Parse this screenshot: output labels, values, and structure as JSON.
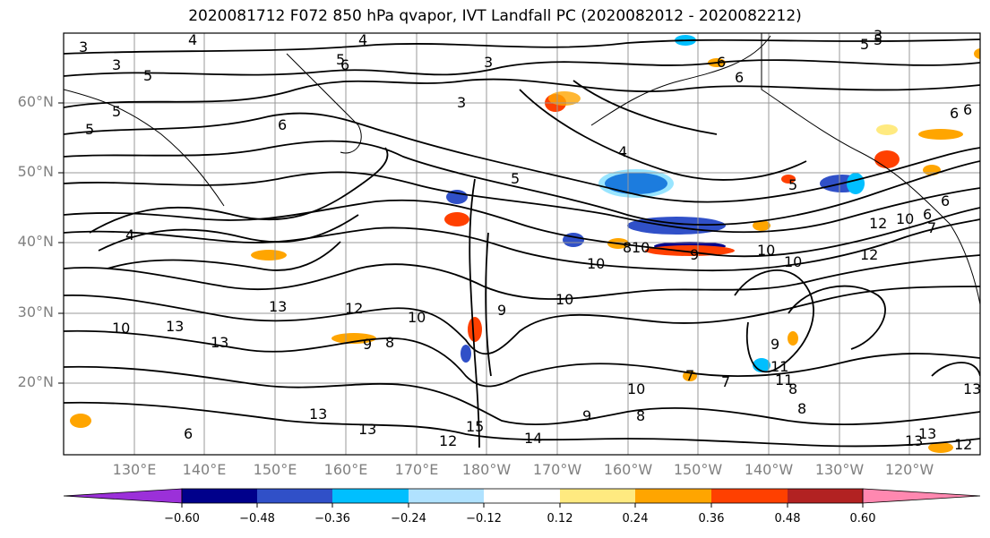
{
  "title": "2020081712 F072 850 hPa qvapor, IVT Landfall PC (2020082012 - 2020082212)",
  "lat_labels": [
    "60°N",
    "50°N",
    "40°N",
    "30°N",
    "20°N"
  ],
  "lon_labels": [
    "130°E",
    "140°E",
    "150°E",
    "160°E",
    "170°E",
    "180°W",
    "170°W",
    "160°W",
    "150°W",
    "140°W",
    "130°W",
    "120°W"
  ],
  "colorbar": {
    "ticks": [
      "−0.60",
      "−0.48",
      "−0.36",
      "−0.24",
      "−0.12",
      "0.12",
      "0.24",
      "0.36",
      "0.48",
      "0.60"
    ],
    "colors": [
      "#9b30d9",
      "#00008b",
      "#3050c8",
      "#00bfff",
      "#b0e2ff",
      "#ffffff",
      "#ffea80",
      "#ffa500",
      "#ff4000",
      "#b22222",
      "#ff88b0"
    ]
  },
  "contour_labels": [
    "3",
    "3",
    "5",
    "4",
    "3",
    "3",
    "5",
    "5",
    "6",
    "5",
    "6",
    "4",
    "6",
    "5",
    "4",
    "5",
    "6",
    "6",
    "5",
    "5",
    "9",
    "8",
    "9",
    "10",
    "10",
    "10",
    "10",
    "8",
    "12",
    "13",
    "13",
    "13",
    "10",
    "12",
    "10",
    "9",
    "8",
    "7",
    "7",
    "10",
    "8",
    "9",
    "10",
    "11",
    "8",
    "12",
    "13",
    "13",
    "13",
    "15",
    "12",
    "14",
    "9",
    "10",
    "11",
    "13",
    "12",
    "13",
    "3",
    "4",
    "6",
    "6",
    "7",
    "6",
    "6"
  ],
  "colors": {
    "contour": "#000000",
    "grid": "#999999",
    "tick_label": "#808080"
  }
}
